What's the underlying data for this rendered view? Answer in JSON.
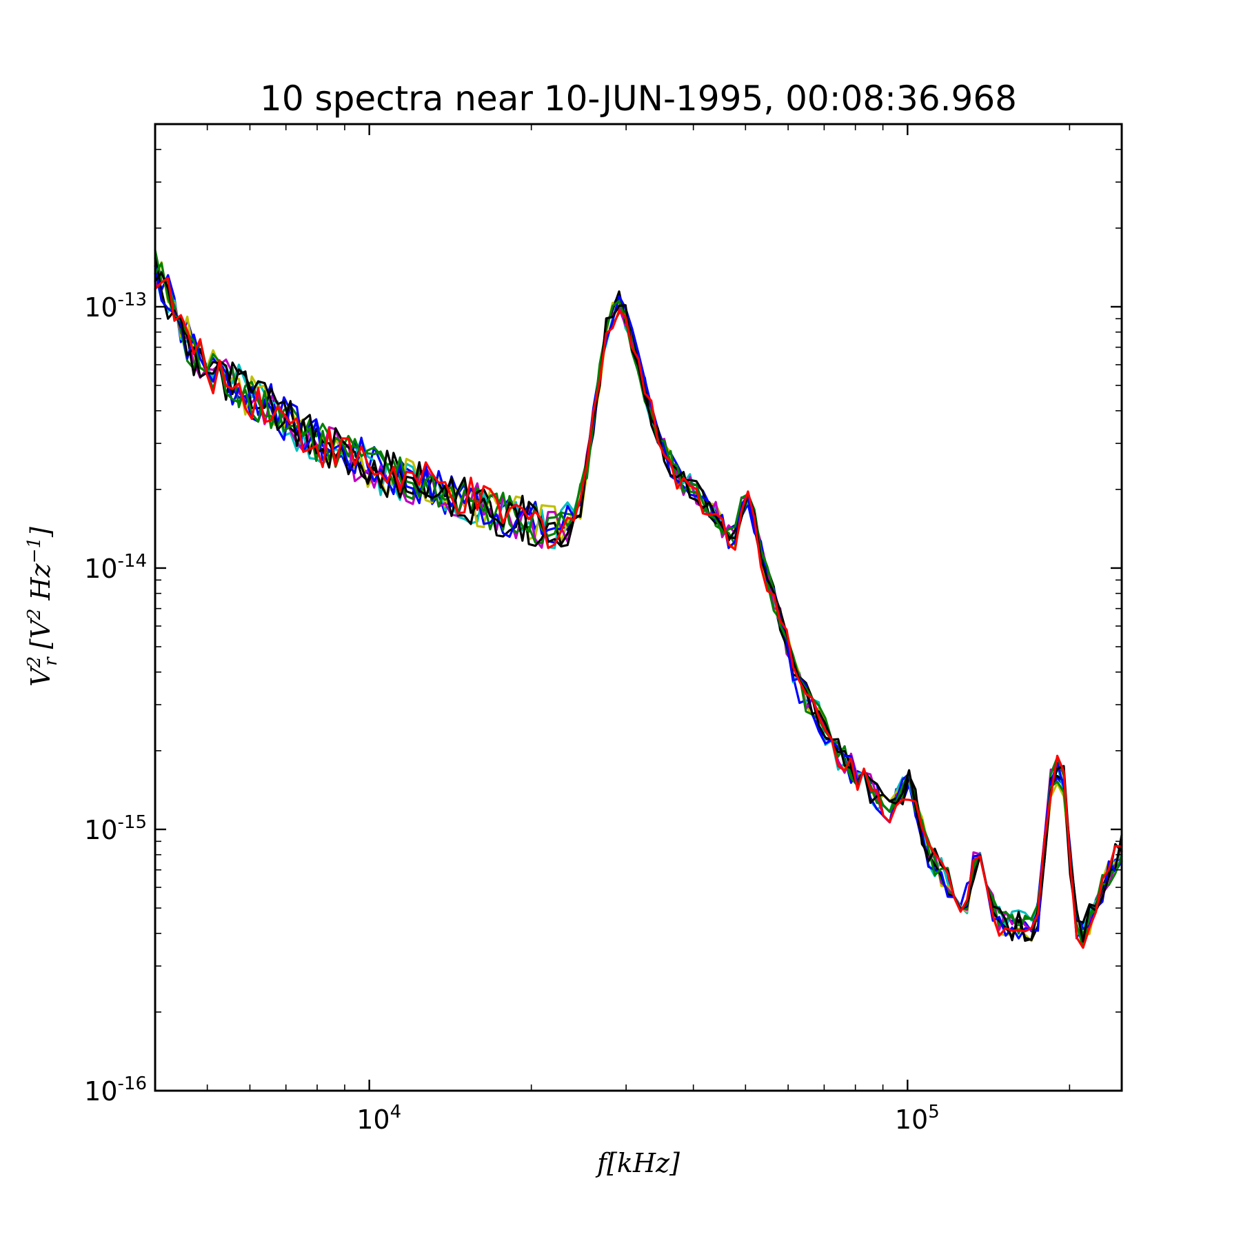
{
  "chart_data": {
    "type": "line",
    "title": "10 spectra near 10-JUN-1995, 00:08:36.968",
    "xlabel": "f[kHz]",
    "ylabel": "V_r^2 [V^2 Hz^-1]",
    "xscale": "log",
    "yscale": "log",
    "xlim": [
      4000,
      250000
    ],
    "ylim": [
      1e-16,
      5e-13
    ],
    "grid": false,
    "legend": "none",
    "x_tick_labels": [
      {
        "value": 10000,
        "base": "10",
        "exp": "4"
      },
      {
        "value": 100000,
        "base": "10",
        "exp": "5"
      }
    ],
    "y_tick_labels": [
      {
        "value": 1e-13,
        "base": "10",
        "exp": "-13"
      },
      {
        "value": 1e-14,
        "base": "10",
        "exp": "-14"
      },
      {
        "value": 1e-15,
        "base": "10",
        "exp": "-15"
      },
      {
        "value": 1e-16,
        "base": "10",
        "exp": "-16"
      }
    ],
    "x": [
      4000,
      4800,
      5600,
      6400,
      7200,
      8000,
      8800,
      9600,
      10400,
      11200,
      12000,
      13000,
      14000,
      15000,
      16000,
      17000,
      18000,
      19000,
      20000,
      21000,
      22000,
      23000,
      24000,
      25000,
      26000,
      27000,
      28000,
      29000,
      30000,
      31000,
      32000,
      33000,
      34000,
      35000,
      36000,
      37000,
      38000,
      40000,
      42000,
      44000,
      46000,
      48000,
      50000,
      52000,
      54000,
      56000,
      58000,
      60000,
      62000,
      64000,
      66000,
      68000,
      70000,
      72000,
      74000,
      76000,
      78000,
      80000,
      82000,
      84000,
      86000,
      88000,
      90000,
      92000,
      94000,
      96000,
      98000,
      100000,
      104000,
      108000,
      112000,
      116000,
      120000,
      124000,
      128000,
      132000,
      136000,
      140000,
      146000,
      152000,
      158000,
      164000,
      170000,
      176000,
      182000,
      188000,
      194000,
      200000,
      206000,
      212000,
      218000,
      224000,
      230000,
      236000,
      242000,
      248000
    ],
    "base_curve": [
      1.4e-13,
      6.2e-14,
      5e-14,
      4.3e-14,
      3.5e-14,
      3e-14,
      2.8e-14,
      2.6e-14,
      2.35e-14,
      2.25e-14,
      2.15e-14,
      2.05e-14,
      1.95e-14,
      1.85e-14,
      1.75e-14,
      1.65e-14,
      1.6e-14,
      1.55e-14,
      1.5e-14,
      1.45e-14,
      1.42e-14,
      1.45e-14,
      1.6e-14,
      2e-14,
      3.5e-14,
      8e-14,
      1.05e-13,
      9e-14,
      7e-14,
      5.5e-14,
      4.3e-14,
      3.5e-14,
      3e-14,
      2.6e-14,
      2.3e-14,
      2.15e-14,
      2e-14,
      1.75e-14,
      1.6e-14,
      1.35e-14,
      1.3e-14,
      2.1e-14,
      1.5e-14,
      1e-14,
      8e-15,
      6.5e-15,
      5e-15,
      3.7e-15,
      3.3e-15,
      3e-15,
      2.8e-15,
      2.4e-15,
      2.1e-15,
      1.9e-15,
      1.75e-15,
      1.6e-15,
      1.5e-15,
      1.35e-15,
      1.2e-15,
      1.3e-15,
      1.55e-15,
      1.2e-15,
      8.5e-16,
      7.5e-16,
      6.8e-16,
      6e-16,
      5.5e-16,
      5e-16,
      7e-16,
      9e-16,
      4.5e-16,
      4.4e-16,
      4.3e-16,
      4.2e-16,
      4.3e-16,
      1.8e-15,
      1.5e-15,
      4.5e-16,
      4e-16,
      5e-16,
      8.5e-16
    ],
    "base_curve_x": [
      4000,
      4800,
      5600,
      6400,
      7200,
      8000,
      8800,
      9600,
      10400,
      11200,
      12000,
      13000,
      14000,
      15000,
      16000,
      17000,
      18000,
      19000,
      20000,
      21000,
      22000,
      23000,
      24000,
      25000,
      26000,
      27500,
      29000,
      30000,
      31000,
      32000,
      33000,
      34000,
      35000,
      36000,
      37000,
      38000,
      40000,
      42000,
      44000,
      46000,
      48000,
      50000,
      52000,
      54000,
      56000,
      58000,
      60000,
      62000,
      64000,
      66000,
      68000,
      70000,
      72000,
      75000,
      78000,
      81000,
      84000,
      88000,
      92000,
      96000,
      100000,
      104000,
      108000,
      112000,
      116000,
      120000,
      124000,
      128000,
      132000,
      136000,
      146000,
      152000,
      158000,
      166000,
      174000,
      186000,
      196000,
      204000,
      212000,
      222000,
      248000
    ],
    "series": [
      {
        "color": "#0000ff",
        "seed": 1
      },
      {
        "color": "#00bfbf",
        "seed": 2
      },
      {
        "color": "#bfbf00",
        "seed": 3
      },
      {
        "color": "#bf00bf",
        "seed": 4
      },
      {
        "color": "#008000",
        "seed": 5
      },
      {
        "color": "#000000",
        "seed": 6
      },
      {
        "color": "#0000ff",
        "seed": 7
      },
      {
        "color": "#008000",
        "seed": 8
      },
      {
        "color": "#000000",
        "seed": 9
      },
      {
        "color": "#ff0000",
        "seed": 10
      }
    ]
  }
}
